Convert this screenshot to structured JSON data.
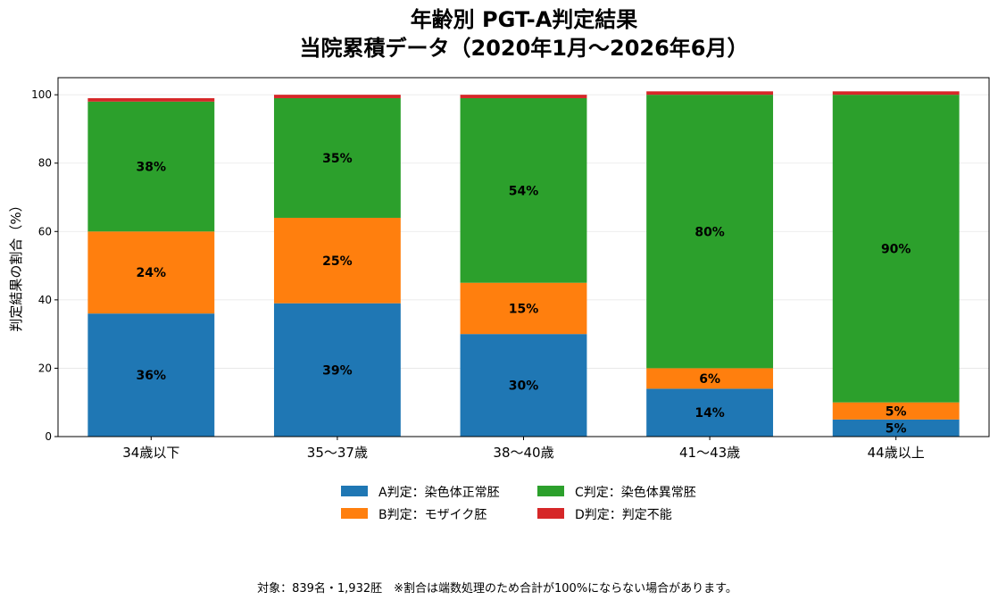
{
  "chart_data": {
    "type": "bar",
    "stacked": true,
    "title": [
      "年齢別 PGT-A判定結果",
      "当院累積データ（2020年1月〜2026年6月）"
    ],
    "xlabel": "",
    "ylabel": "判定結果の割合（%）",
    "ylim": [
      0,
      105
    ],
    "yticks": [
      0,
      20,
      40,
      60,
      80,
      100
    ],
    "grid": true,
    "legend_position": "bottom",
    "categories": [
      "34歳以下",
      "35〜37歳",
      "38〜40歳",
      "41〜43歳",
      "44歳以上"
    ],
    "series": [
      {
        "name": "A判定：染色体正常胚",
        "color": "#1f77b4",
        "values": [
          36,
          39,
          30,
          14,
          5
        ],
        "labels": [
          "36%",
          "39%",
          "30%",
          "14%",
          "5%"
        ]
      },
      {
        "name": "B判定：モザイク胚",
        "color": "#ff7f0e",
        "values": [
          24,
          25,
          15,
          6,
          5
        ],
        "labels": [
          "24%",
          "25%",
          "15%",
          "6%",
          "5%"
        ]
      },
      {
        "name": "C判定：染色体異常胚",
        "color": "#2ca02c",
        "values": [
          38,
          35,
          54,
          80,
          90
        ],
        "labels": [
          "38%",
          "35%",
          "54%",
          "80%",
          "90%"
        ]
      },
      {
        "name": "D判定：判定不能",
        "color": "#d62728",
        "values": [
          1,
          1,
          1,
          1,
          1
        ],
        "labels": [
          "",
          "",
          "",
          "",
          ""
        ]
      }
    ]
  },
  "footnote": "対象：839名・1,932胚　※割合は端数処理のため合計が100%にならない場合があります。"
}
